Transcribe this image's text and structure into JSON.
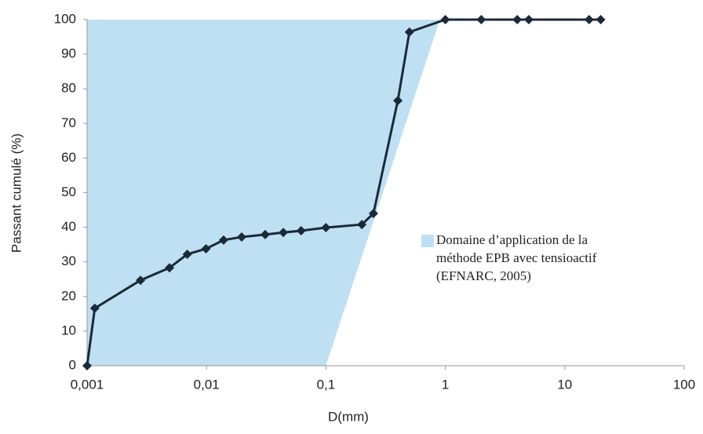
{
  "chart_data": {
    "type": "line",
    "x_label": "D(mm)",
    "y_label": "Passant cumulé (%)",
    "x_scale": "log",
    "xlim": [
      0.001,
      100
    ],
    "xticks": [
      {
        "value": 0.001,
        "label": "0,001"
      },
      {
        "value": 0.01,
        "label": "0,01"
      },
      {
        "value": 0.1,
        "label": "0,1"
      },
      1,
      10,
      100
    ],
    "ylim": [
      0,
      100
    ],
    "yticks": [
      0,
      10,
      20,
      30,
      40,
      50,
      60,
      70,
      80,
      90,
      100
    ],
    "region": {
      "name": [
        "Domaine d’application de la",
        "méthode EPB avec tensioactif",
        "(EFNARC, 2005)"
      ],
      "color": "#bfe0f2",
      "x": [
        0.001,
        0.001,
        0.9,
        0.1
      ],
      "y": [
        0,
        100,
        100,
        0
      ]
    },
    "series": [
      {
        "color": "#1b2a38",
        "x": [
          0.001,
          0.00116,
          0.0028,
          0.0049,
          0.0069,
          0.0099,
          0.0139,
          0.0197,
          0.031,
          0.044,
          0.062,
          0.1,
          0.2,
          0.25,
          0.4,
          0.5,
          1,
          2,
          4,
          5,
          16,
          20
        ],
        "values": [
          0,
          16.6,
          24.7,
          28.3,
          32.2,
          33.8,
          36.3,
          37.2,
          37.9,
          38.5,
          39,
          39.9,
          40.8,
          44,
          76.6,
          96.4,
          100,
          100,
          100,
          100,
          100,
          100
        ]
      }
    ]
  }
}
